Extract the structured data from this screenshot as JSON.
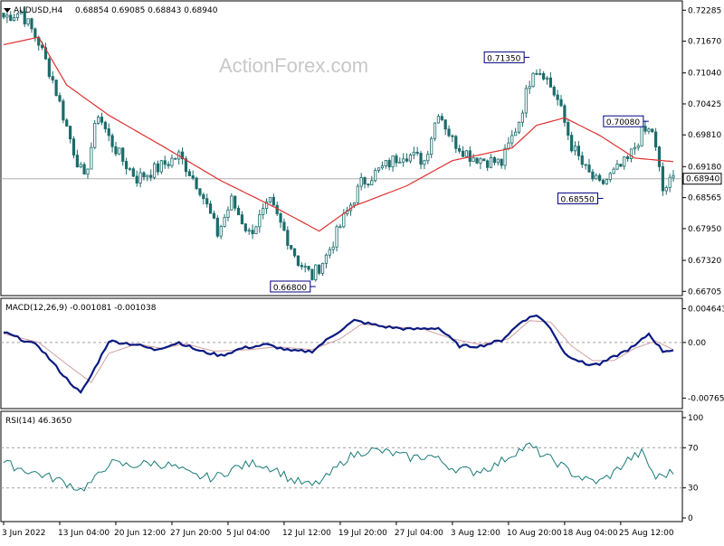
{
  "header": {
    "symbol": "AUDUSD,H4",
    "ohlc": "0.68854 0.69085 0.68843 0.68940"
  },
  "watermark": "ActionForex.com",
  "colors": {
    "candle": "#1c6b6b",
    "ma_line": "#e03030",
    "macd_line": "#0a1a80",
    "signal_line": "#d0a0a0",
    "rsi_line": "#1a7a78",
    "label_border": "#000080",
    "grid_dashed": "#a0a0a0"
  },
  "chart_data": [
    {
      "type": "candlestick",
      "panel": "price",
      "ylim": [
        0.6671,
        0.7238
      ],
      "yticks": [
        "0.72285",
        "0.71670",
        "0.71040",
        "0.70425",
        "0.69810",
        "0.69180",
        "0.68565",
        "0.67950",
        "0.67320",
        "0.66705"
      ],
      "ytick_values": [
        0.72285,
        0.7167,
        0.7104,
        0.70425,
        0.6981,
        0.6918,
        0.68565,
        0.6795,
        0.6732,
        0.66705
      ],
      "last_price_label": "0.68940",
      "last_price": 0.6894,
      "annotations": [
        {
          "text": "0.71350",
          "value": 0.7135,
          "bar": 150
        },
        {
          "text": "0.70080",
          "value": 0.7008,
          "bar": 184
        },
        {
          "text": "0.68550",
          "value": 0.6855,
          "bar": 171
        },
        {
          "text": "0.66800",
          "value": 0.668,
          "bar": 89
        }
      ],
      "close_keypoints": [
        [
          0,
          0.7215
        ],
        [
          5,
          0.7225
        ],
        [
          10,
          0.7165
        ],
        [
          14,
          0.709
        ],
        [
          20,
          0.695
        ],
        [
          23,
          0.689
        ],
        [
          27,
          0.7025
        ],
        [
          30,
          0.6975
        ],
        [
          34,
          0.693
        ],
        [
          38,
          0.6895
        ],
        [
          44,
          0.6915
        ],
        [
          50,
          0.694
        ],
        [
          56,
          0.6875
        ],
        [
          61,
          0.6785
        ],
        [
          65,
          0.685
        ],
        [
          70,
          0.6785
        ],
        [
          76,
          0.6845
        ],
        [
          80,
          0.679
        ],
        [
          84,
          0.673
        ],
        [
          88,
          0.67
        ],
        [
          92,
          0.674
        ],
        [
          96,
          0.68
        ],
        [
          102,
          0.6885
        ],
        [
          108,
          0.6915
        ],
        [
          114,
          0.6945
        ],
        [
          120,
          0.693
        ],
        [
          124,
          0.703
        ],
        [
          128,
          0.697
        ],
        [
          133,
          0.694
        ],
        [
          138,
          0.693
        ],
        [
          142,
          0.6925
        ],
        [
          147,
          0.701
        ],
        [
          151,
          0.7115
        ],
        [
          154,
          0.7105
        ],
        [
          158,
          0.705
        ],
        [
          162,
          0.696
        ],
        [
          166,
          0.691
        ],
        [
          170,
          0.688
        ],
        [
          174,
          0.6905
        ],
        [
          178,
          0.693
        ],
        [
          182,
          0.6985
        ],
        [
          185,
          0.699
        ],
        [
          188,
          0.687
        ],
        [
          191,
          0.6894
        ]
      ],
      "ma_keypoints": [
        [
          0,
          0.716
        ],
        [
          10,
          0.7175
        ],
        [
          18,
          0.708
        ],
        [
          30,
          0.702
        ],
        [
          45,
          0.696
        ],
        [
          62,
          0.689
        ],
        [
          78,
          0.6835
        ],
        [
          90,
          0.679
        ],
        [
          100,
          0.684
        ],
        [
          115,
          0.688
        ],
        [
          128,
          0.693
        ],
        [
          145,
          0.6955
        ],
        [
          152,
          0.7
        ],
        [
          160,
          0.7015
        ],
        [
          170,
          0.698
        ],
        [
          180,
          0.6935
        ],
        [
          191,
          0.6928
        ]
      ]
    },
    {
      "type": "line",
      "panel": "macd",
      "label": "MACD(12,26,9) -0.001081 -0.001038",
      "yticks": [
        "0.004643",
        "0.00",
        "-0.007653"
      ],
      "ytick_values": [
        0.004643,
        0.0,
        -0.007653
      ],
      "ylim": [
        -0.0086,
        0.0052
      ],
      "macd_keypoints": [
        [
          0,
          0.0014
        ],
        [
          10,
          -0.0005
        ],
        [
          17,
          -0.0045
        ],
        [
          22,
          -0.007
        ],
        [
          25,
          -0.0045
        ],
        [
          30,
          0.0002
        ],
        [
          38,
          -0.0003
        ],
        [
          43,
          -0.001
        ],
        [
          50,
          0.0
        ],
        [
          56,
          -0.0012
        ],
        [
          62,
          -0.0018
        ],
        [
          68,
          -0.0008
        ],
        [
          75,
          -0.0003
        ],
        [
          82,
          -0.0012
        ],
        [
          88,
          -0.0012
        ],
        [
          94,
          0.001
        ],
        [
          100,
          0.003
        ],
        [
          108,
          0.0022
        ],
        [
          116,
          0.0018
        ],
        [
          124,
          0.002
        ],
        [
          130,
          -0.0005
        ],
        [
          136,
          -0.0005
        ],
        [
          142,
          0.0003
        ],
        [
          148,
          0.003
        ],
        [
          152,
          0.0038
        ],
        [
          156,
          0.002
        ],
        [
          160,
          -0.0015
        ],
        [
          166,
          -0.003
        ],
        [
          170,
          -0.003
        ],
        [
          176,
          -0.0015
        ],
        [
          180,
          -0.0005
        ],
        [
          184,
          0.0012
        ],
        [
          188,
          -0.0012
        ],
        [
          191,
          -0.001
        ]
      ],
      "signal_keypoints": [
        [
          0,
          0.0012
        ],
        [
          10,
          0.0
        ],
        [
          18,
          -0.003
        ],
        [
          25,
          -0.0055
        ],
        [
          30,
          -0.0015
        ],
        [
          38,
          -0.0002
        ],
        [
          45,
          -0.0008
        ],
        [
          52,
          -0.0002
        ],
        [
          60,
          -0.0012
        ],
        [
          70,
          -0.001
        ],
        [
          78,
          -0.0006
        ],
        [
          88,
          -0.001
        ],
        [
          96,
          0.0005
        ],
        [
          102,
          0.0025
        ],
        [
          110,
          0.0022
        ],
        [
          120,
          0.0018
        ],
        [
          128,
          0.0005
        ],
        [
          136,
          -0.0003
        ],
        [
          144,
          0.0005
        ],
        [
          150,
          0.003
        ],
        [
          156,
          0.0028
        ],
        [
          162,
          -0.0005
        ],
        [
          168,
          -0.0025
        ],
        [
          174,
          -0.0025
        ],
        [
          180,
          -0.0008
        ],
        [
          186,
          0.0002
        ],
        [
          191,
          -0.001
        ]
      ]
    },
    {
      "type": "line",
      "panel": "rsi",
      "label": "RSI(14) 46.3650",
      "yticks": [
        "100",
        "70",
        "30",
        "0"
      ],
      "ytick_values": [
        100,
        70,
        30,
        0
      ],
      "ylim": [
        0,
        100
      ],
      "rsi_keypoints": [
        [
          0,
          55
        ],
        [
          6,
          48
        ],
        [
          12,
          42
        ],
        [
          18,
          35
        ],
        [
          22,
          28
        ],
        [
          26,
          38
        ],
        [
          30,
          55
        ],
        [
          36,
          52
        ],
        [
          42,
          55
        ],
        [
          48,
          52
        ],
        [
          54,
          42
        ],
        [
          60,
          40
        ],
        [
          66,
          50
        ],
        [
          72,
          55
        ],
        [
          78,
          48
        ],
        [
          82,
          38
        ],
        [
          88,
          32
        ],
        [
          92,
          40
        ],
        [
          98,
          60
        ],
        [
          104,
          68
        ],
        [
          110,
          65
        ],
        [
          116,
          60
        ],
        [
          122,
          62
        ],
        [
          128,
          50
        ],
        [
          134,
          46
        ],
        [
          140,
          52
        ],
        [
          146,
          66
        ],
        [
          150,
          72
        ],
        [
          154,
          62
        ],
        [
          158,
          55
        ],
        [
          162,
          45
        ],
        [
          166,
          38
        ],
        [
          170,
          36
        ],
        [
          174,
          45
        ],
        [
          178,
          58
        ],
        [
          182,
          65
        ],
        [
          186,
          40
        ],
        [
          191,
          46
        ]
      ]
    }
  ],
  "xaxis": {
    "labels": [
      "3 Jun 2022",
      "13 Jun 04:00",
      "20 Jun 12:00",
      "27 Jun 20:00",
      "5 Jul 04:00",
      "12 Jul 12:00",
      "19 Jul 20:00",
      "27 Jul 04:00",
      "3 Aug 12:00",
      "10 Aug 20:00",
      "18 Aug 04:00",
      "25 Aug 12:00"
    ],
    "label_bars": [
      0,
      16,
      32,
      48,
      64,
      80,
      96,
      112,
      128,
      144,
      160,
      176
    ]
  }
}
